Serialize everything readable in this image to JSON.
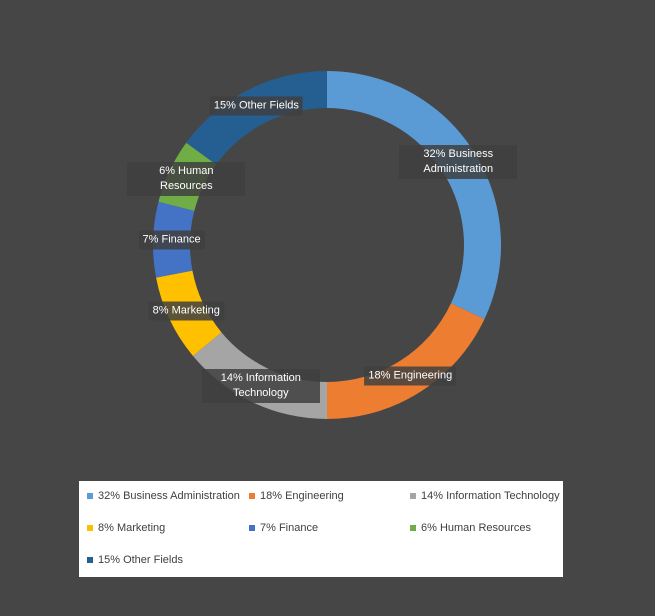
{
  "chart_data": {
    "type": "donut",
    "categories": [
      "32% Business Administration",
      "18% Engineering",
      "14% Information Technology",
      "8% Marketing",
      "7% Finance",
      "6% Human Resources",
      "15% Other Fields"
    ],
    "values": [
      32,
      18,
      14,
      8,
      7,
      6,
      15
    ],
    "colors": [
      "#5b9bd5",
      "#ed7d31",
      "#a5a5a5",
      "#ffc000",
      "#4472c4",
      "#70ad47",
      "#255e91"
    ],
    "legend": "bottom"
  }
}
